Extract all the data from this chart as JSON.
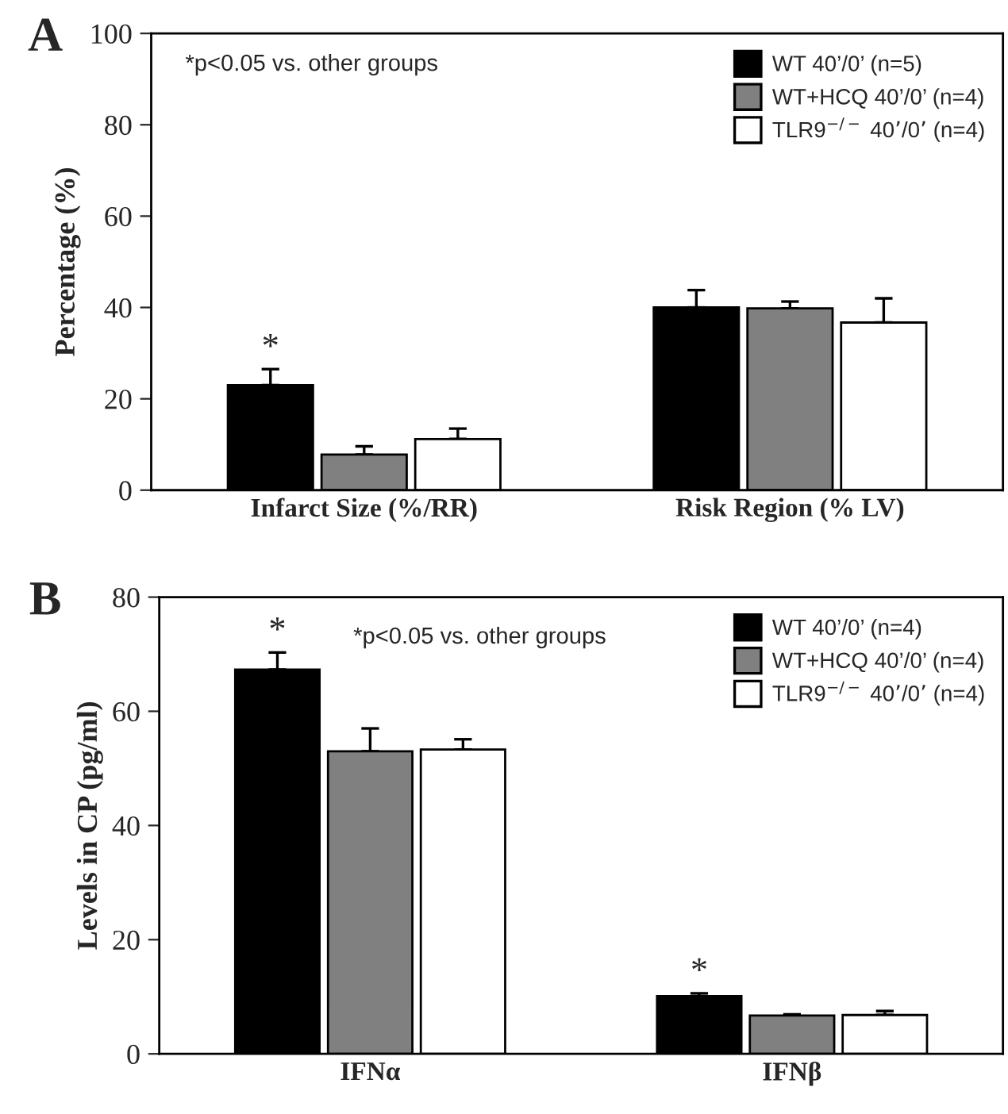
{
  "chart_data": [
    {
      "type": "bar",
      "ylabel": "Percentage (%)",
      "categories": [
        "Infarct Size (%/RR)",
        "Risk Region (% LV)"
      ],
      "ylim": [
        0,
        100
      ],
      "yticks": [
        0,
        20,
        40,
        60,
        80,
        100
      ],
      "grid": false,
      "legend": "top right",
      "annotations": [
        "A",
        "*p<0.05 vs. other groups"
      ],
      "series": [
        {
          "name": "WT 40’/0’ (n=5)",
          "color": "#000000",
          "values": [
            23,
            40
          ],
          "errors": [
            [
              23,
              26.5
            ],
            [
              40,
              43.8
            ]
          ],
          "value_labels": [
            "*",
            null
          ]
        },
        {
          "name": "WT+HCQ 40’/0’ (n=4)",
          "color": "#808080",
          "values": [
            7.8,
            39.8
          ],
          "errors": [
            [
              7.8,
              9.6
            ],
            [
              39.8,
              41.3
            ]
          ]
        },
        {
          "name": "TLR9$^{−/−}$ 40’/0’ (n=4)",
          "color": "#ffffff",
          "values": [
            11.2,
            36.7
          ],
          "errors": [
            [
              11.2,
              13.5
            ],
            [
              36.7,
              42
            ]
          ]
        }
      ]
    },
    {
      "type": "bar",
      "ylabel": "Levels in CP (pg/ml)",
      "categories": [
        "IFNα",
        "IFNβ"
      ],
      "ylim": [
        0,
        80
      ],
      "yticks": [
        0,
        20,
        40,
        60,
        80
      ],
      "grid": false,
      "legend": "top right",
      "annotations": [
        "B",
        "*p<0.05 vs. other groups"
      ],
      "series": [
        {
          "name": "WT 40’/0’ (n=4)",
          "color": "#000000",
          "values": [
            67.3,
            10.1
          ],
          "errors": [
            [
              67.3,
              70.3
            ],
            [
              10.1,
              10.6
            ]
          ],
          "value_labels": [
            "*",
            "*"
          ]
        },
        {
          "name": "WT+HCQ 40’/0’ (n=4)",
          "color": "#808080",
          "values": [
            53,
            6.7
          ],
          "errors": [
            [
              53,
              57
            ],
            [
              6.7,
              6.9
            ]
          ]
        },
        {
          "name": "TLR9$^{−/−}$ 40’/0’ (n=4)",
          "color": "#ffffff",
          "values": [
            53.3,
            6.8
          ],
          "errors": [
            [
              53.3,
              55.1
            ],
            [
              6.8,
              7.5
            ]
          ]
        }
      ]
    }
  ]
}
